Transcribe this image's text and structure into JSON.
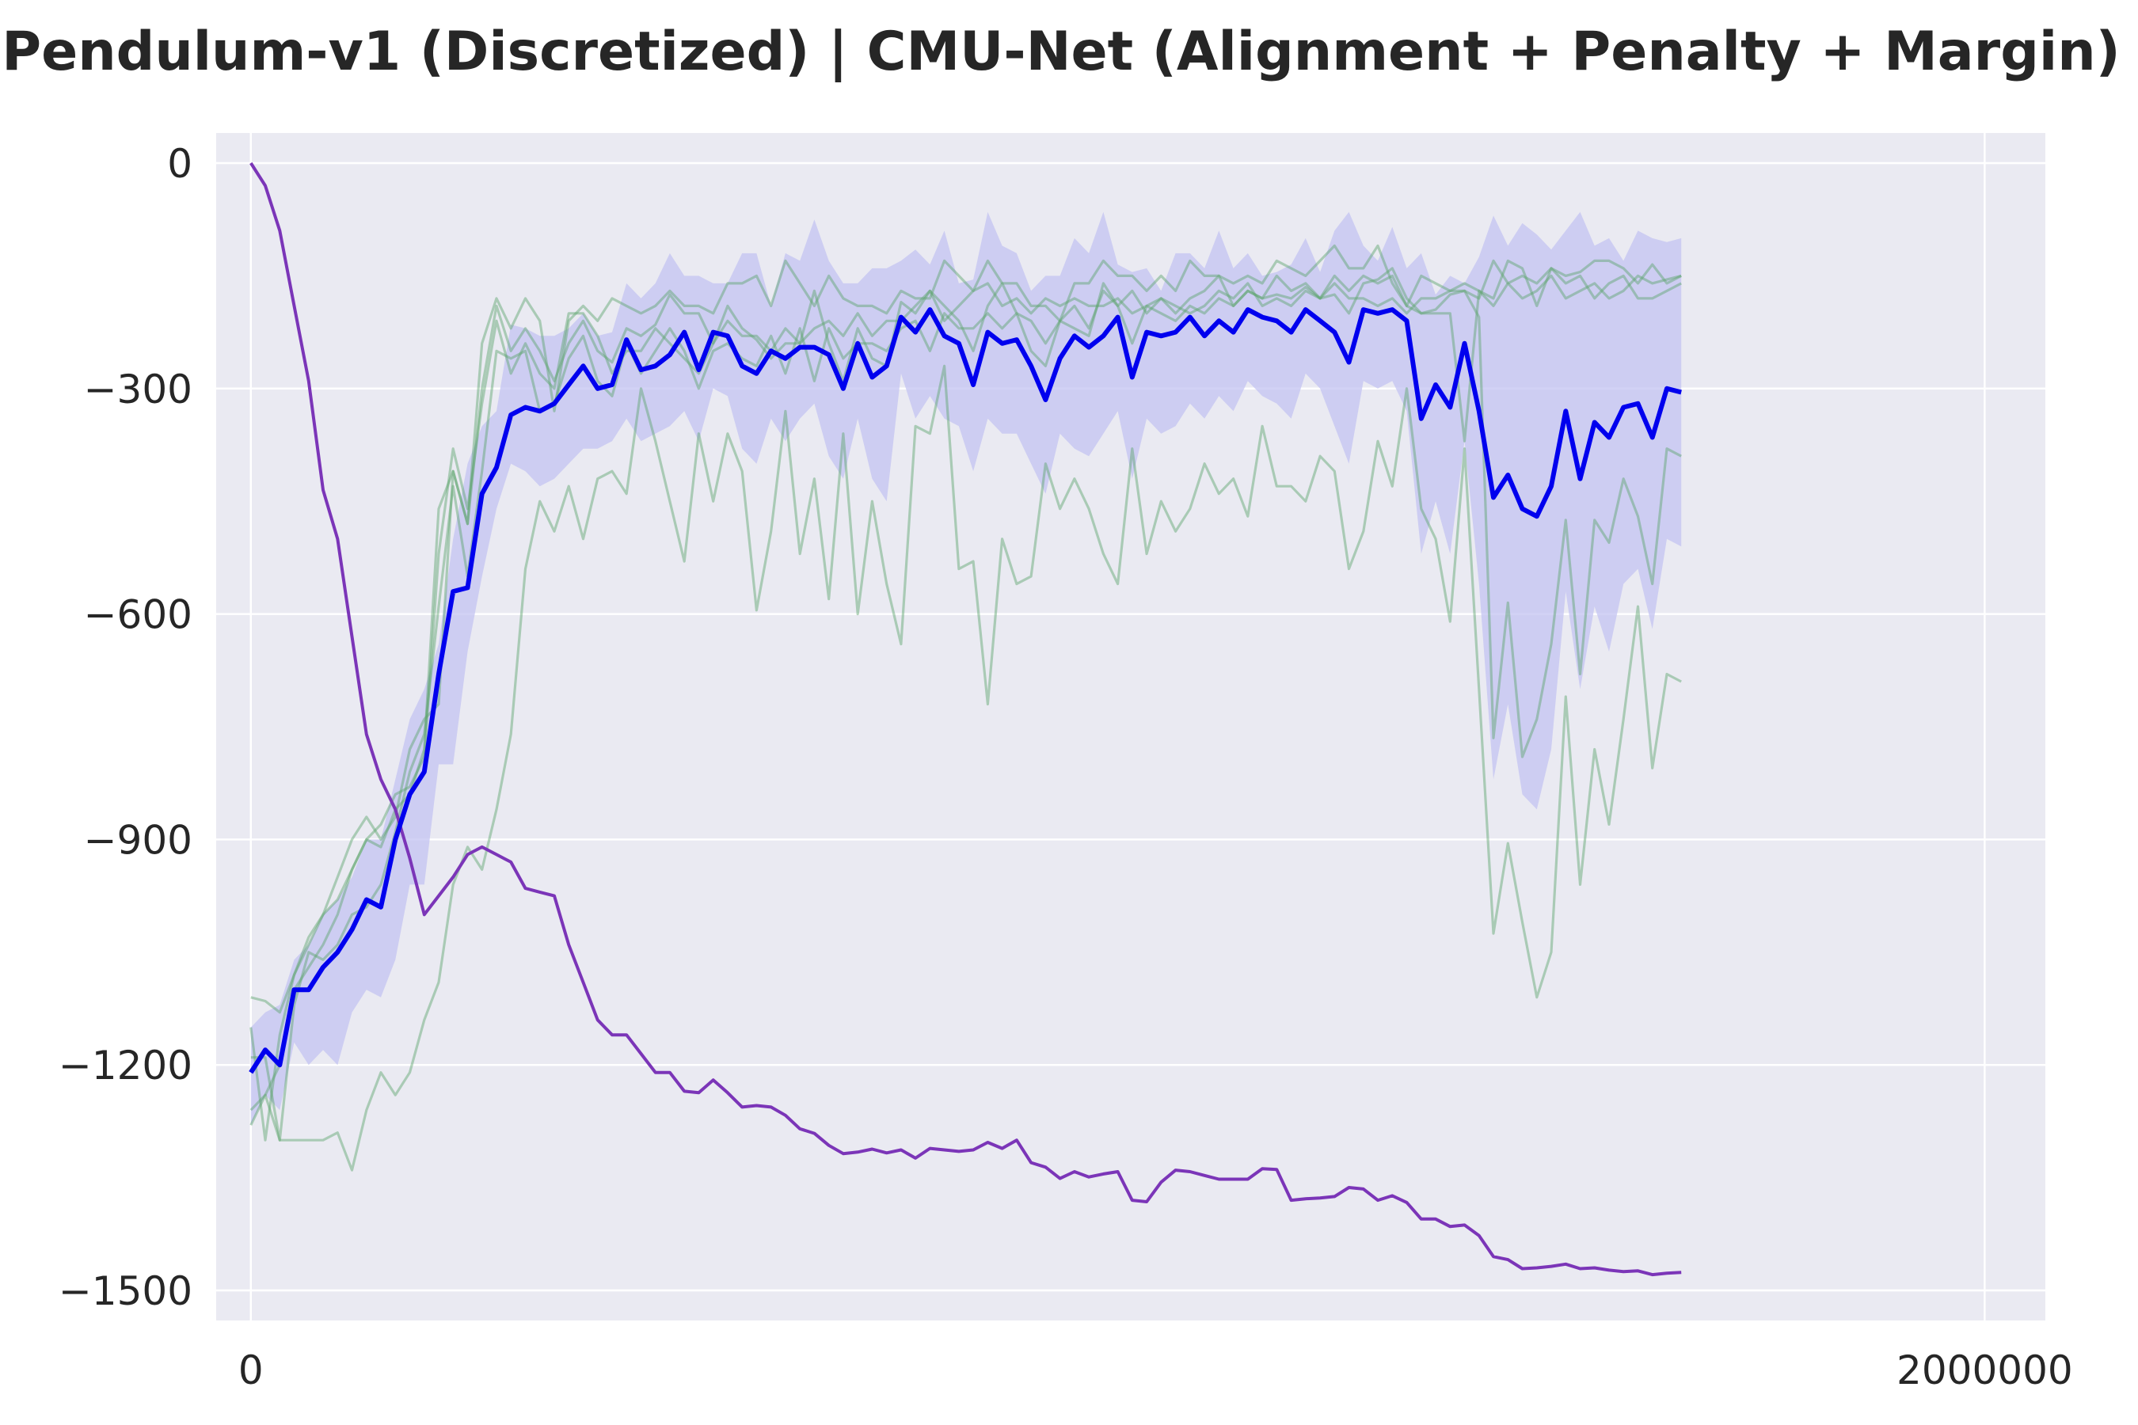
{
  "chart_data": {
    "type": "line",
    "title": "Pendulum-v1 (Discretized) | CMU-Net (Alignment + Penalty + Margin)",
    "xlabel": "",
    "ylabel": "",
    "xlim": [
      -40000,
      2070000
    ],
    "ylim": [
      -1540,
      40
    ],
    "x_ticks": [
      0,
      2000000
    ],
    "x_tick_labels": [
      "0",
      "2000000"
    ],
    "y_ticks": [
      0,
      -300,
      -600,
      -900,
      -1200,
      -1500
    ],
    "y_tick_labels": [
      "0",
      "−300",
      "−600",
      "−900",
      "−1200",
      "−1500"
    ],
    "grid": true,
    "legend": "none",
    "colors": {
      "background": "#eaeaf2",
      "grid": "#ffffff",
      "mean": "#0000ee",
      "band": "#c3c3f1",
      "runs": "#5aa36a",
      "decay": "#7b35b8",
      "text": "#262626"
    },
    "x_start": 0,
    "x_step": 16667,
    "series": [
      {
        "role": "mean",
        "values": [
          -1210,
          -1180,
          -1200,
          -1100,
          -1100,
          -1070,
          -1050,
          -1020,
          -980,
          -990,
          -900,
          -840,
          -810,
          -680,
          -570,
          -565,
          -440,
          -405,
          -335,
          -325,
          -330,
          -320,
          -295,
          -270,
          -300,
          -295,
          -235,
          -275,
          -270,
          -255,
          -225,
          -275,
          -225,
          -230,
          -270,
          -280,
          -250,
          -260,
          -245,
          -245,
          -255,
          -300,
          -240,
          -285,
          -270,
          -205,
          -225,
          -195,
          -230,
          -240,
          -295,
          -225,
          -240,
          -235,
          -270,
          -315,
          -260,
          -230,
          -245,
          -230,
          -205,
          -285,
          -225,
          -230,
          -225,
          -205,
          -230,
          -210,
          -225,
          -195,
          -205,
          -210,
          -225,
          -195,
          -210,
          -225,
          -265,
          -195,
          -200,
          -195,
          -210,
          -340,
          -295,
          -325,
          -240,
          -330,
          -445,
          -415,
          -460,
          -470,
          -430,
          -330,
          -420,
          -345,
          -365,
          -325,
          -320,
          -365,
          -300,
          -305
        ]
      },
      {
        "role": "band_upper",
        "values": [
          -1150,
          -1130,
          -1120,
          -1060,
          -1040,
          -1000,
          -980,
          -950,
          -900,
          -900,
          -820,
          -740,
          -700,
          -640,
          -500,
          -400,
          -350,
          -330,
          -215,
          -220,
          -230,
          -230,
          -220,
          -200,
          -230,
          -225,
          -160,
          -180,
          -160,
          -120,
          -150,
          -150,
          -160,
          -160,
          -120,
          -120,
          -190,
          -120,
          -130,
          -75,
          -130,
          -160,
          -160,
          -140,
          -140,
          -130,
          -115,
          -135,
          -90,
          -160,
          -155,
          -65,
          -110,
          -120,
          -170,
          -150,
          -150,
          -100,
          -120,
          -65,
          -135,
          -145,
          -140,
          -170,
          -120,
          -120,
          -140,
          -90,
          -140,
          -120,
          -150,
          -145,
          -135,
          -100,
          -145,
          -90,
          -65,
          -110,
          -130,
          -85,
          -140,
          -120,
          -175,
          -150,
          -160,
          -125,
          -70,
          -110,
          -80,
          -95,
          -115,
          -90,
          -65,
          -110,
          -100,
          -130,
          -90,
          -100,
          -105,
          -100
        ]
      },
      {
        "role": "band_lower",
        "values": [
          -1280,
          -1240,
          -1260,
          -1170,
          -1200,
          -1180,
          -1200,
          -1130,
          -1100,
          -1110,
          -1060,
          -960,
          -960,
          -800,
          -800,
          -650,
          -550,
          -460,
          -400,
          -410,
          -430,
          -420,
          -400,
          -380,
          -380,
          -370,
          -340,
          -370,
          -360,
          -350,
          -330,
          -370,
          -300,
          -310,
          -380,
          -400,
          -340,
          -370,
          -340,
          -320,
          -390,
          -420,
          -340,
          -420,
          -450,
          -280,
          -340,
          -310,
          -340,
          -350,
          -410,
          -340,
          -360,
          -360,
          -400,
          -440,
          -360,
          -380,
          -390,
          -360,
          -330,
          -420,
          -340,
          -360,
          -350,
          -320,
          -340,
          -310,
          -330,
          -290,
          -310,
          -320,
          -340,
          -280,
          -300,
          -350,
          -400,
          -290,
          -300,
          -290,
          -330,
          -520,
          -450,
          -520,
          -370,
          -560,
          -820,
          -720,
          -840,
          -860,
          -780,
          -570,
          -700,
          -590,
          -650,
          -560,
          -540,
          -620,
          -500,
          -510
        ]
      },
      {
        "role": "run",
        "values": [
          -1110,
          -1115,
          -1130,
          -1080,
          -1040,
          -1000,
          -980,
          -940,
          -900,
          -910,
          -860,
          -840,
          -780,
          -460,
          -410,
          -480,
          -300,
          -190,
          -250,
          -220,
          -250,
          -290,
          -240,
          -210,
          -250,
          -265,
          -220,
          -230,
          -215,
          -175,
          -200,
          -200,
          -240,
          -190,
          -220,
          -235,
          -260,
          -240,
          -240,
          -170,
          -240,
          -290,
          -220,
          -260,
          -270,
          -185,
          -200,
          -170,
          -190,
          -210,
          -250,
          -190,
          -160,
          -200,
          -250,
          -270,
          -210,
          -190,
          -220,
          -170,
          -190,
          -240,
          -190,
          -200,
          -210,
          -190,
          -200,
          -180,
          -190,
          -170,
          -180,
          -175,
          -180,
          -165,
          -180,
          -175,
          -200,
          -160,
          -155,
          -140,
          -180,
          -200,
          -195,
          -175,
          -170,
          -205,
          -765,
          -585,
          -790,
          -740,
          -640,
          -475,
          -680,
          -475,
          -505,
          -420,
          -470,
          -560,
          -380,
          -390
        ]
      },
      {
        "role": "run",
        "values": [
          -1280,
          -1240,
          -1300,
          -1300,
          -1300,
          -1300,
          -1290,
          -1340,
          -1260,
          -1210,
          -1240,
          -1210,
          -1140,
          -1090,
          -960,
          -910,
          -940,
          -860,
          -760,
          -540,
          -450,
          -490,
          -430,
          -500,
          -420,
          -410,
          -440,
          -300,
          -370,
          -450,
          -530,
          -360,
          -450,
          -360,
          -410,
          -595,
          -490,
          -330,
          -520,
          -420,
          -580,
          -360,
          -600,
          -450,
          -560,
          -640,
          -350,
          -360,
          -270,
          -540,
          -530,
          -720,
          -500,
          -560,
          -550,
          -400,
          -460,
          -420,
          -460,
          -520,
          -560,
          -380,
          -520,
          -450,
          -490,
          -460,
          -400,
          -440,
          -420,
          -470,
          -350,
          -430,
          -430,
          -450,
          -390,
          -410,
          -540,
          -490,
          -370,
          -430,
          -300,
          -460,
          -500,
          -610,
          -380,
          -700,
          -1025,
          -905,
          -1010,
          -1110,
          -1050,
          -710,
          -960,
          -780,
          -880,
          -740,
          -590,
          -805,
          -680,
          -690
        ]
      },
      {
        "role": "run",
        "values": [
          -1150,
          -1300,
          -1160,
          -1080,
          -1030,
          -1000,
          -950,
          -900,
          -870,
          -900,
          -870,
          -780,
          -740,
          -720,
          -410,
          -480,
          -240,
          -180,
          -220,
          -180,
          -210,
          -330,
          -210,
          -190,
          -210,
          -180,
          -190,
          -200,
          -190,
          -170,
          -190,
          -190,
          -200,
          -160,
          -160,
          -150,
          -190,
          -130,
          -160,
          -190,
          -150,
          -180,
          -190,
          -190,
          -200,
          -170,
          -180,
          -180,
          -130,
          -150,
          -170,
          -130,
          -160,
          -160,
          -190,
          -190,
          -210,
          -160,
          -160,
          -130,
          -150,
          -150,
          -170,
          -150,
          -170,
          -130,
          -150,
          -150,
          -160,
          -150,
          -160,
          -130,
          -140,
          -150,
          -130,
          -110,
          -140,
          -140,
          -110,
          -160,
          -190,
          -200,
          -200,
          -200,
          -370,
          -170,
          -180,
          -130,
          -140,
          -190,
          -140,
          -150,
          -145,
          -130,
          -130,
          -140,
          -160,
          -135,
          -160,
          -150
        ]
      },
      {
        "role": "run",
        "values": [
          -1190,
          -1190,
          -1300,
          -1120,
          -1050,
          -1060,
          -1040,
          -1000,
          -990,
          -960,
          -890,
          -810,
          -760,
          -590,
          -430,
          -550,
          -410,
          -250,
          -260,
          -250,
          -330,
          -320,
          -260,
          -230,
          -290,
          -310,
          -240,
          -280,
          -250,
          -220,
          -250,
          -300,
          -250,
          -240,
          -260,
          -270,
          -230,
          -280,
          -220,
          -290,
          -220,
          -260,
          -240,
          -240,
          -250,
          -220,
          -210,
          -250,
          -200,
          -220,
          -220,
          -200,
          -220,
          -200,
          -210,
          -240,
          -210,
          -220,
          -230,
          -160,
          -190,
          -170,
          -200,
          -180,
          -200,
          -180,
          -170,
          -150,
          -190,
          -170,
          -180,
          -150,
          -170,
          -160,
          -180,
          -150,
          -170,
          -150,
          -160,
          -150,
          -190,
          -150,
          -160,
          -170,
          -170,
          -180,
          -130,
          -160,
          -150,
          -160,
          -140,
          -160,
          -150,
          -180,
          -160,
          -150,
          -180,
          -180,
          -170,
          -160
        ]
      },
      {
        "role": "run",
        "values": [
          -1260,
          -1240,
          -1200,
          -1100,
          -1070,
          -1040,
          -1000,
          -940,
          -900,
          -880,
          -840,
          -830,
          -790,
          -520,
          -380,
          -460,
          -320,
          -210,
          -280,
          -240,
          -280,
          -300,
          -200,
          -200,
          -230,
          -280,
          -250,
          -250,
          -220,
          -240,
          -260,
          -280,
          -240,
          -210,
          -230,
          -230,
          -250,
          -220,
          -240,
          -220,
          -210,
          -230,
          -200,
          -230,
          -210,
          -210,
          -190,
          -170,
          -210,
          -190,
          -170,
          -160,
          -190,
          -180,
          -200,
          -180,
          -190,
          -180,
          -190,
          -190,
          -180,
          -200,
          -190,
          -180,
          -190,
          -200,
          -190,
          -170,
          -180,
          -160,
          -190,
          -180,
          -190,
          -170,
          -180,
          -160,
          -180,
          -180,
          -190,
          -180,
          -200,
          -180,
          -180,
          -170,
          -160,
          -170,
          -190,
          -160,
          -180,
          -170,
          -150,
          -180,
          -170,
          -160,
          -180,
          -170,
          -150,
          -160,
          -155,
          -150
        ]
      },
      {
        "role": "decay",
        "values": [
          0,
          -30,
          -90,
          -190,
          -290,
          -435,
          -500,
          -630,
          -760,
          -820,
          -860,
          -925,
          -1000,
          -975,
          -950,
          -920,
          -910,
          -920,
          -930,
          -965,
          -970,
          -975,
          -1040,
          -1090,
          -1140,
          -1160,
          -1160,
          -1185,
          -1210,
          -1210,
          -1235,
          -1237,
          -1220,
          -1237,
          -1256,
          -1254,
          -1256,
          -1267,
          -1285,
          -1291,
          -1307,
          -1318,
          -1316,
          -1312,
          -1317,
          -1313,
          -1324,
          -1311,
          -1313,
          -1315,
          -1313,
          -1303,
          -1311,
          -1300,
          -1330,
          -1336,
          -1351,
          -1342,
          -1349,
          -1345,
          -1342,
          -1380,
          -1382,
          -1356,
          -1340,
          -1342,
          -1347,
          -1352,
          -1352,
          -1352,
          -1338,
          -1339,
          -1380,
          -1378,
          -1377,
          -1375,
          -1363,
          -1365,
          -1380,
          -1374,
          -1383,
          -1405,
          -1405,
          -1415,
          -1413,
          -1427,
          -1455,
          -1459,
          -1471,
          -1470,
          -1468,
          -1465,
          -1471,
          -1470,
          -1473,
          -1475,
          -1474,
          -1479,
          -1477,
          -1476
        ]
      }
    ]
  }
}
